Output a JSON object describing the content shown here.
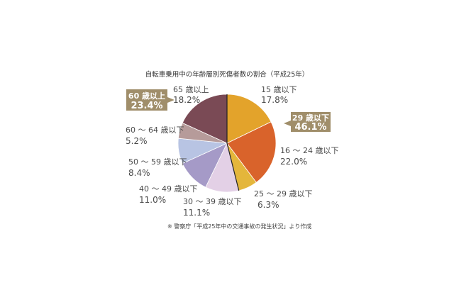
{
  "chart_data": {
    "type": "pie",
    "title": "自転車乗用中の年齢層別死傷者数の割合（平成25年）",
    "source": "※ 警察庁「平成25年中の交通事故の発生状況」より作成",
    "slices": [
      {
        "label": "15 歳以下",
        "value": 17.8,
        "value_text": "17.8%",
        "color": "#e3a32b"
      },
      {
        "label": "16 ～ 24 歳以下",
        "value": 22.0,
        "value_text": "22.0%",
        "color": "#d9632b"
      },
      {
        "label": "25 ～ 29 歳以下",
        "value": 6.3,
        "value_text": "6.3%",
        "color": "#e4b63b"
      },
      {
        "label": "30 ～ 39 歳以下",
        "value": 11.1,
        "value_text": "11.1%",
        "color": "#e3d0e6"
      },
      {
        "label": "40 ～ 49 歳以下",
        "value": 11.0,
        "value_text": "11.0%",
        "color": "#a59ac7"
      },
      {
        "label": "50 ～ 59 歳以下",
        "value": 8.4,
        "value_text": "8.4%",
        "color": "#b8c4e3"
      },
      {
        "label": "60 ～ 64 歳以下",
        "value": 5.2,
        "value_text": "5.2%",
        "color": "#b69b9a"
      },
      {
        "label": "65 歳以上",
        "value": 18.2,
        "value_text": "18.2%",
        "color": "#7a4a55"
      }
    ],
    "callouts": [
      {
        "label": "29 歳以下",
        "value": 46.1,
        "value_text": "46.1%",
        "color": "#a08e6a"
      },
      {
        "label": "60 歳以上",
        "value": 23.4,
        "value_text": "23.4%",
        "color": "#a08e6a"
      }
    ]
  }
}
